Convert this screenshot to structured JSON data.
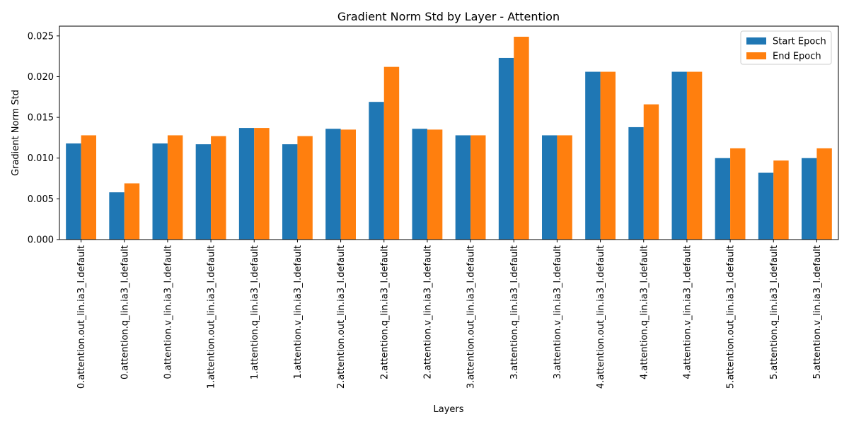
{
  "chart_data": {
    "type": "bar",
    "title": "Gradient Norm Std by Layer - Attention",
    "xlabel": "Layers",
    "ylabel": "Gradient Norm Std",
    "ylim": [
      0,
      0.0262
    ],
    "yticks": [
      "0.000",
      "0.005",
      "0.010",
      "0.015",
      "0.020",
      "0.025"
    ],
    "ytick_values": [
      0,
      0.005,
      0.01,
      0.015,
      0.02,
      0.025
    ],
    "legend_position": "top-right",
    "grid": false,
    "categories": [
      "0.attention.out_lin.ia3_l.default",
      "0.attention.q_lin.ia3_l.default",
      "0.attention.v_lin.ia3_l.default",
      "1.attention.out_lin.ia3_l.default",
      "1.attention.q_lin.ia3_l.default",
      "1.attention.v_lin.ia3_l.default",
      "2.attention.out_lin.ia3_l.default",
      "2.attention.q_lin.ia3_l.default",
      "2.attention.v_lin.ia3_l.default",
      "3.attention.out_lin.ia3_l.default",
      "3.attention.q_lin.ia3_l.default",
      "3.attention.v_lin.ia3_l.default",
      "4.attention.out_lin.ia3_l.default",
      "4.attention.q_lin.ia3_l.default",
      "4.attention.v_lin.ia3_l.default",
      "5.attention.out_lin.ia3_l.default",
      "5.attention.q_lin.ia3_l.default",
      "5.attention.v_lin.ia3_l.default"
    ],
    "series": [
      {
        "name": "Start Epoch",
        "color": "#1f77b4",
        "values": [
          0.0118,
          0.0058,
          0.0118,
          0.0117,
          0.0137,
          0.0117,
          0.0136,
          0.0169,
          0.0136,
          0.0128,
          0.0223,
          0.0128,
          0.0206,
          0.0138,
          0.0206,
          0.01,
          0.0082,
          0.01
        ]
      },
      {
        "name": "End Epoch",
        "color": "#ff7f0e",
        "values": [
          0.0128,
          0.0069,
          0.0128,
          0.0127,
          0.0137,
          0.0127,
          0.0135,
          0.0212,
          0.0135,
          0.0128,
          0.0249,
          0.0128,
          0.0206,
          0.0166,
          0.0206,
          0.0112,
          0.0097,
          0.0112
        ]
      }
    ]
  }
}
